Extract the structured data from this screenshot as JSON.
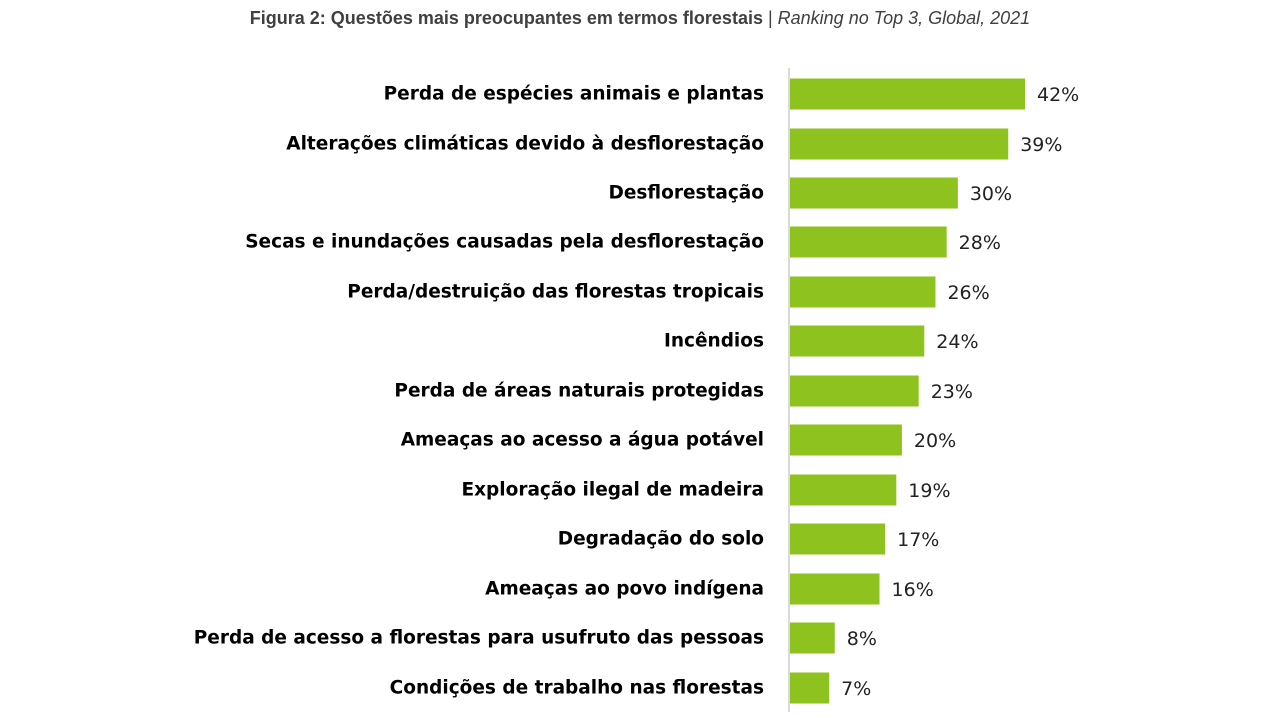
{
  "title": {
    "main": "Figura 2: Questões mais preocupantes em termos florestais",
    "separator": " | ",
    "sub": "Ranking no Top 3, Global, 2021"
  },
  "bar_color": "#8dc21f",
  "axis_color": "#d9d9d9",
  "chart_data": {
    "type": "bar",
    "orientation": "horizontal",
    "title": "Figura 2: Questões mais preocupantes em termos florestais | Ranking no Top 3, Global, 2021",
    "categories": [
      "Perda de espécies animais e plantas",
      "Alterações climáticas devido à desflorestação",
      "Desflorestação",
      "Secas e inundações causadas pela desflorestação",
      "Perda/destruição das florestas tropicais",
      "Incêndios",
      "Perda de áreas naturais protegidas",
      "Ameaças ao acesso a água potável",
      "Exploração ilegal de madeira",
      "Degradação do solo",
      "Ameaças ao povo indígena",
      "Perda de acesso a florestas para usufruto das pessoas",
      "Condições de trabalho nas florestas"
    ],
    "values": [
      42,
      39,
      30,
      28,
      26,
      24,
      23,
      20,
      19,
      17,
      16,
      8,
      7
    ],
    "value_labels": [
      "42%",
      "39%",
      "30%",
      "28%",
      "26%",
      "24%",
      "23%",
      "20%",
      "19%",
      "17%",
      "16%",
      "8%",
      "7%"
    ],
    "unit": "%",
    "xlim": [
      0,
      42
    ],
    "grid": false,
    "legend": "none"
  }
}
